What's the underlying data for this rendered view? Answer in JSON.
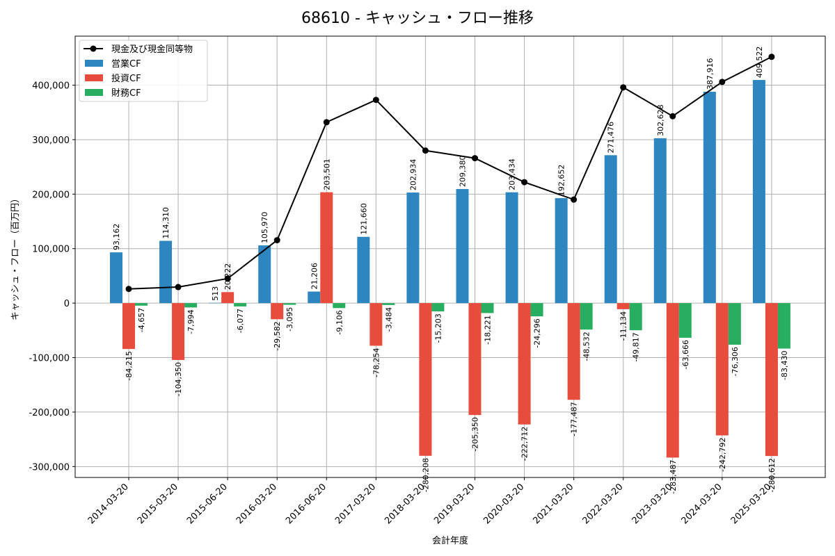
{
  "chart_data": {
    "type": "bar",
    "title": "68610 - キャッシュ・フロー推移",
    "xlabel": "会計年度",
    "ylabel": "キャッシュ・フロー（百万円）",
    "categories": [
      "2014-03-20",
      "2015-03-20",
      "2015-06-20",
      "2016-03-20",
      "2016-06-20",
      "2017-03-20",
      "2018-03-20",
      "2019-03-20",
      "2020-03-20",
      "2021-03-20",
      "2022-03-20",
      "2023-03-20",
      "2024-03-20",
      "2025-03-20"
    ],
    "ylim": [
      -320000,
      490000
    ],
    "yticks": [
      -300000,
      -200000,
      -100000,
      0,
      100000,
      200000,
      300000,
      400000
    ],
    "ytick_labels": [
      "-300,000",
      "-200,000",
      "-100,000",
      "0",
      "100,000",
      "200,000",
      "300,000",
      "400,000"
    ],
    "grid": true,
    "legend_position": "top-left",
    "series": [
      {
        "name": "営業CF",
        "kind": "bar",
        "color": "#2e86c1",
        "values": [
          93162,
          114310,
          513,
          105970,
          21206,
          121660,
          202934,
          209380,
          203434,
          192652,
          271476,
          302628,
          387916,
          409522
        ],
        "labels": [
          "93,162",
          "114,310",
          "513",
          "105,970",
          "21,206",
          "121,660",
          "202,934",
          "209,380",
          "203,434",
          "192,652",
          "271,476",
          "302,628",
          "387,916",
          "409,522"
        ]
      },
      {
        "name": "投資CF",
        "kind": "bar",
        "color": "#e74c3c",
        "values": [
          -84215,
          -104350,
          20222,
          -29582,
          203501,
          -78254,
          -280208,
          -205350,
          -222712,
          -177487,
          -11134,
          -283487,
          -242792,
          -280612
        ],
        "labels": [
          "-84,215",
          "-104,350",
          "20,222",
          "-29,582",
          "203,501",
          "-78,254",
          "-280,208",
          "-205,350",
          "-222,712",
          "-177,487",
          "-11,134",
          "-283,487",
          "-242,792",
          "-280,612"
        ]
      },
      {
        "name": "財務CF",
        "kind": "bar",
        "color": "#27ae60",
        "values": [
          -4657,
          -7994,
          -6077,
          -3095,
          -9106,
          -3484,
          -15203,
          -18221,
          -24296,
          -48532,
          -49817,
          -63666,
          -76306,
          -83430
        ],
        "labels": [
          "-4,657",
          "-7,994",
          "-6,077",
          "-3,095",
          "-9,106",
          "-3,484",
          "-15,203",
          "-18,221",
          "-24,296",
          "-48,532",
          "-49,817",
          "-63,666",
          "-76,306",
          "-83,430"
        ]
      },
      {
        "name": "現金及び現金同等物",
        "kind": "line",
        "color": "#000000",
        "values": [
          26000,
          29500,
          45000,
          115500,
          332000,
          373000,
          280000,
          266000,
          222000,
          190000,
          396000,
          343000,
          406000,
          452000
        ]
      }
    ]
  }
}
